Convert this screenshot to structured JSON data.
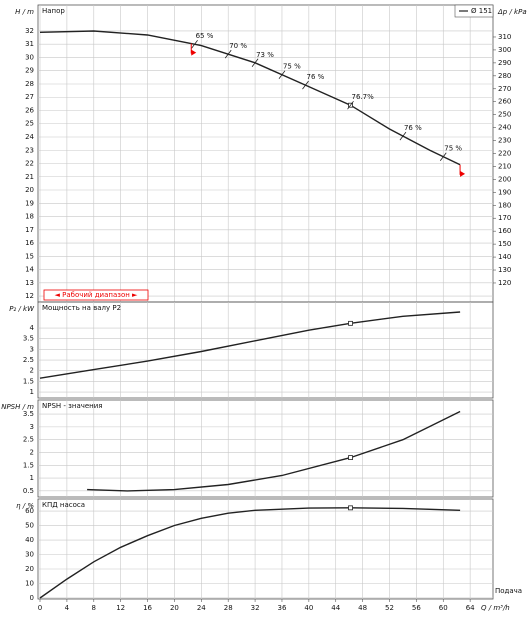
{
  "chart_data": [
    {
      "type": "line",
      "title": "Напор",
      "ylabel": "H / m",
      "y2label": "Δp / kPa",
      "x": [
        0,
        8,
        16,
        24,
        32,
        40,
        46.2,
        52,
        58,
        62.5
      ],
      "series": [
        {
          "name": "Ø 151",
          "color": "#222222",
          "values": [
            31.9,
            32,
            31.7,
            30.9,
            29.6,
            27.8,
            26.4,
            24.6,
            23,
            21.9
          ]
        }
      ],
      "duty_point": [
        46.2,
        26.4
      ],
      "annotations": [
        {
          "x": 23,
          "text": "65 %"
        },
        {
          "x": 28,
          "text": "70 %"
        },
        {
          "x": 32,
          "text": "73 %"
        },
        {
          "x": 36,
          "text": "75 %"
        },
        {
          "x": 39.5,
          "text": "76 %"
        },
        {
          "x": 46.2,
          "text": "76.7%"
        },
        {
          "x": 54,
          "text": "76 %"
        },
        {
          "x": 60,
          "text": "75 %"
        }
      ],
      "range": {
        "label": "◄ Рабочий диапазон ►",
        "x": [
          22.5,
          62.5
        ]
      },
      "xlim": [
        -0.3,
        67.4
      ],
      "ylim": [
        11.55,
        33.96
      ],
      "yticks": [
        12,
        13,
        14,
        15,
        16,
        17,
        18,
        19,
        20,
        21,
        22,
        23,
        24,
        25,
        26,
        27,
        28,
        29,
        30,
        31,
        32
      ],
      "y2lim": [
        105.3,
        334.7
      ],
      "y2ticks": [
        120,
        130,
        140,
        150,
        160,
        170,
        180,
        190,
        200,
        210,
        220,
        230,
        240,
        250,
        260,
        270,
        280,
        290,
        300,
        310
      ],
      "grid": true
    },
    {
      "type": "line",
      "title": "Мощность на валу P2",
      "ylabel": "P₂ / kW",
      "x": [
        0,
        8,
        16,
        24,
        32,
        40,
        46.2,
        54,
        62.5
      ],
      "series": [
        {
          "color": "#222222",
          "values": [
            1.65,
            2.05,
            2.45,
            2.9,
            3.4,
            3.9,
            4.22,
            4.55,
            4.75
          ]
        }
      ],
      "duty_point": [
        46.2,
        4.22
      ],
      "xlim": [
        -0.3,
        67.4
      ],
      "ylim": [
        0.72,
        5.22
      ],
      "yticks": [
        1,
        1.5,
        2,
        2.5,
        3,
        3.5,
        4
      ],
      "grid": true
    },
    {
      "type": "line",
      "title": "NPSH - значения",
      "ylabel": "NPSH / m",
      "x": [
        7,
        13,
        20,
        28,
        36,
        46.2,
        54,
        62.5
      ],
      "series": [
        {
          "color": "#222222",
          "values": [
            0.55,
            0.5,
            0.55,
            0.75,
            1.1,
            1.8,
            2.5,
            3.6
          ]
        }
      ],
      "duty_point": [
        46.2,
        1.8
      ],
      "xlim": [
        -0.3,
        67.4
      ],
      "ylim": [
        0.26,
        4.05
      ],
      "yticks": [
        0.5,
        1,
        1.5,
        2,
        2.5,
        3,
        3.5
      ],
      "grid": true
    },
    {
      "type": "line",
      "title": "КПД насоса",
      "ylabel": "η / %",
      "xlabel": "Q / m³/h",
      "xtitle": "Подача",
      "x": [
        0,
        4,
        8,
        12,
        16,
        20,
        24,
        28,
        32,
        40,
        46.2,
        54,
        62.5
      ],
      "series": [
        {
          "color": "#222222",
          "values": [
            0,
            13,
            25,
            35,
            43,
            50,
            55,
            58.5,
            60.5,
            62,
            62.2,
            61.8,
            60.5
          ]
        }
      ],
      "duty_point": [
        46.2,
        62.2
      ],
      "xlim": [
        -0.3,
        67.4
      ],
      "ylim": [
        -0.7,
        68.3
      ],
      "yticks": [
        0,
        10,
        20,
        30,
        40,
        50,
        60
      ],
      "xticks": [
        0,
        4,
        8,
        12,
        16,
        20,
        24,
        28,
        32,
        36,
        40,
        44,
        48,
        52,
        56,
        60,
        64
      ],
      "grid": true
    }
  ]
}
